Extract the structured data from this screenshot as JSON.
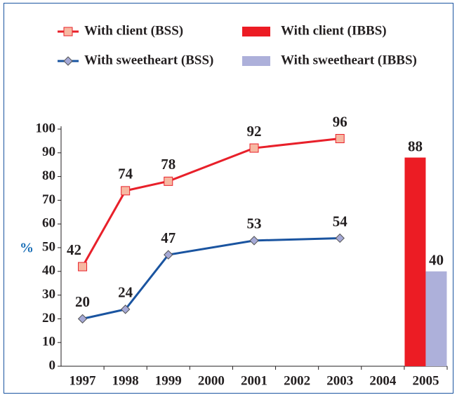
{
  "chart_data": {
    "type": "line",
    "y_label": "%",
    "xlim": [
      1996.5,
      2005.5
    ],
    "xticks": [
      1997,
      1998,
      1999,
      2000,
      2001,
      2002,
      2003,
      2004,
      2005
    ],
    "ylim": [
      0,
      100
    ],
    "yticks": [
      0,
      10,
      20,
      30,
      40,
      50,
      60,
      70,
      80,
      90,
      100
    ],
    "series": [
      {
        "name": "With client (BSS)",
        "type": "line",
        "color": "#e8202a",
        "marker": "square",
        "marker_color": "#f7b8a2",
        "x": [
          1997,
          1998,
          1999,
          2001,
          2003
        ],
        "values": [
          42,
          74,
          78,
          92,
          96
        ]
      },
      {
        "name": "With sweetheart (BSS)",
        "type": "line",
        "color": "#1a54a0",
        "marker": "diamond",
        "marker_color": "#a5a9d6",
        "x": [
          1997,
          1998,
          1999,
          2001,
          2003
        ],
        "values": [
          20,
          24,
          47,
          53,
          54
        ]
      },
      {
        "name": "With client (IBBS)",
        "type": "bar",
        "color": "#ec1c24",
        "x": [
          2005
        ],
        "values": [
          88
        ]
      },
      {
        "name": "With sweetheart (IBBS)",
        "type": "bar",
        "color": "#adb0da",
        "x": [
          2005
        ],
        "values": [
          40
        ]
      }
    ]
  }
}
